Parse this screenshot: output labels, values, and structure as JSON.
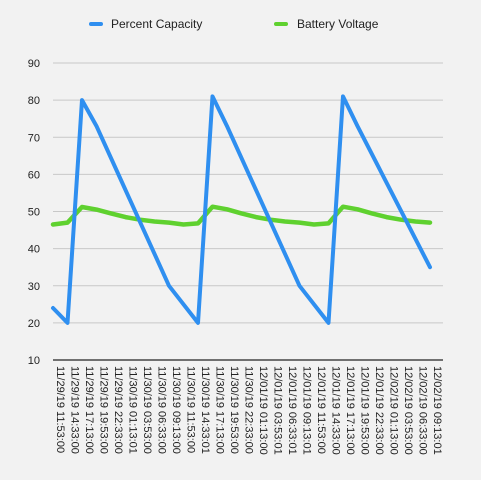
{
  "chart_data": {
    "type": "line",
    "title": "",
    "xlabel": "",
    "ylabel": "",
    "ylim": [
      10,
      90
    ],
    "yticks": [
      10,
      20,
      30,
      40,
      50,
      60,
      70,
      80,
      90
    ],
    "grid": "horizontal",
    "legend_position": "top-center",
    "x": [
      "11/29/19 11:53:00",
      "11/29/19 14:33:00",
      "11/29/19 17:13:00",
      "11/29/19 19:53:00",
      "11/29/19 22:33:00",
      "11/30/19 01:13:01",
      "11/30/19 03:53:00",
      "11/30/19 06:33:00",
      "11/30/19 09:13:00",
      "11/30/19 11:53:00",
      "11/30/19 14:33:01",
      "11/30/19 17:13:00",
      "11/30/19 19:53:00",
      "11/30/19 22:33:00",
      "12/01/19 01:13:00",
      "12/01/19 03:53:01",
      "12/01/19 06:33:01",
      "12/01/19 09:13:01",
      "12/01/19 11:53:00",
      "12/01/19 14:33:00",
      "12/01/19 17:13:00",
      "12/01/19 19:53:00",
      "12/01/19 22:33:00",
      "12/02/19 01:13:00",
      "12/02/19 03:53:00",
      "12/02/19 06:33:00",
      "12/02/19 09:13:01"
    ],
    "series": [
      {
        "name": "Percent Capacity",
        "color": "#2f8ff0",
        "points": [
          [
            "11/29/19 11:53:00",
            24
          ],
          [
            "11/29/19 14:33:00",
            20
          ],
          [
            "11/29/19 17:13:00",
            80
          ],
          [
            "11/29/19 19:53:00",
            73
          ],
          [
            "11/30/19 09:13:00",
            30
          ],
          [
            "11/30/19 14:33:01",
            20
          ],
          [
            "11/30/19 17:13:00",
            81
          ],
          [
            "11/30/19 19:53:00",
            73
          ],
          [
            "12/01/19 09:13:01",
            30
          ],
          [
            "12/01/19 14:33:00",
            20
          ],
          [
            "12/01/19 17:13:00",
            81
          ],
          [
            "12/01/19 19:53:00",
            73
          ],
          [
            "12/02/19 09:13:01",
            35
          ]
        ]
      },
      {
        "name": "Battery Voltage",
        "color": "#5fd12f",
        "points": [
          [
            "11/29/19 11:53:00",
            46.5
          ],
          [
            "11/29/19 14:33:00",
            47
          ],
          [
            "11/29/19 17:13:00",
            51.2
          ],
          [
            "11/29/19 19:53:00",
            50.5
          ],
          [
            "11/29/19 22:33:00",
            49.5
          ],
          [
            "11/30/19 01:13:01",
            48.5
          ],
          [
            "11/30/19 03:53:00",
            47.8
          ],
          [
            "11/30/19 06:33:00",
            47.3
          ],
          [
            "11/30/19 09:13:00",
            47
          ],
          [
            "11/30/19 11:53:00",
            46.5
          ],
          [
            "11/30/19 14:33:01",
            46.8
          ],
          [
            "11/30/19 17:13:00",
            51.3
          ],
          [
            "11/30/19 19:53:00",
            50.6
          ],
          [
            "11/30/19 22:33:00",
            49.5
          ],
          [
            "12/01/19 01:13:00",
            48.5
          ],
          [
            "12/01/19 03:53:01",
            47.8
          ],
          [
            "12/01/19 06:33:01",
            47.3
          ],
          [
            "12/01/19 09:13:01",
            47
          ],
          [
            "12/01/19 11:53:00",
            46.5
          ],
          [
            "12/01/19 14:33:00",
            46.8
          ],
          [
            "12/01/19 17:13:00",
            51.3
          ],
          [
            "12/01/19 19:53:00",
            50.6
          ],
          [
            "12/01/19 22:33:00",
            49.5
          ],
          [
            "12/02/19 01:13:00",
            48.5
          ],
          [
            "12/02/19 03:53:00",
            47.8
          ],
          [
            "12/02/19 06:33:00",
            47.3
          ],
          [
            "12/02/19 09:13:01",
            47
          ]
        ]
      }
    ]
  }
}
